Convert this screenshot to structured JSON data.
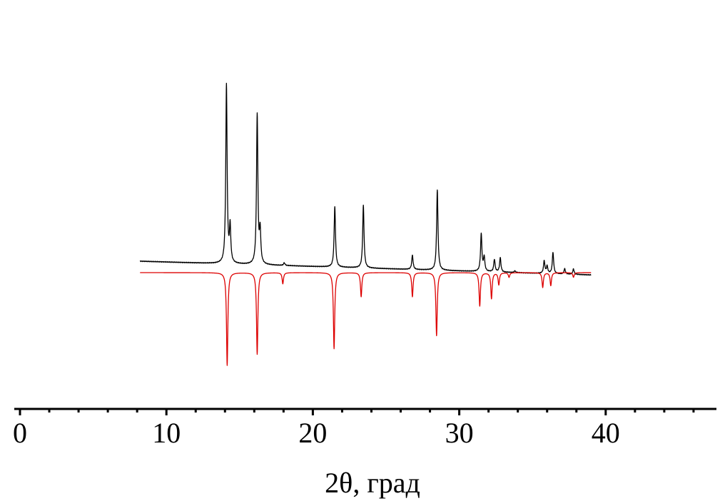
{
  "chart_data": {
    "type": "line",
    "xlabel": "2θ, град",
    "ylabel": "",
    "xlim": [
      0,
      47.8
    ],
    "x_ticks_major": [
      0,
      10,
      20,
      30,
      40
    ],
    "x_tick_labels": [
      "0",
      "10",
      "20",
      "30",
      "40"
    ],
    "x_minor_step": 2,
    "grid": false,
    "legend": "none",
    "series": [
      {
        "color": "#000000",
        "role": "experimental",
        "x_range": [
          8.2,
          39.0
        ],
        "baseline": 5.0,
        "baseline_slope": -0.25,
        "peaks": [
          {
            "x": 14.1,
            "y": 100
          },
          {
            "x": 14.35,
            "y": 20
          },
          {
            "x": 16.2,
            "y": 84
          },
          {
            "x": 16.4,
            "y": 18
          },
          {
            "x": 18.05,
            "y": 1.5
          },
          {
            "x": 21.5,
            "y": 34
          },
          {
            "x": 23.45,
            "y": 35
          },
          {
            "x": 26.8,
            "y": 8
          },
          {
            "x": 28.5,
            "y": 45
          },
          {
            "x": 31.5,
            "y": 21
          },
          {
            "x": 31.7,
            "y": 8
          },
          {
            "x": 32.4,
            "y": 7
          },
          {
            "x": 32.8,
            "y": 8
          },
          {
            "x": 33.8,
            "y": 1
          },
          {
            "x": 35.8,
            "y": 7
          },
          {
            "x": 36.0,
            "y": 4
          },
          {
            "x": 36.4,
            "y": 12
          },
          {
            "x": 37.2,
            "y": 3
          },
          {
            "x": 37.8,
            "y": 3
          }
        ]
      },
      {
        "color": "#dd0000",
        "role": "calculated",
        "x_range": [
          8.2,
          39.0
        ],
        "baseline": 0,
        "baseline_slope": 0,
        "inverted": true,
        "peaks": [
          {
            "x": 14.15,
            "y": 100
          },
          {
            "x": 16.2,
            "y": 88
          },
          {
            "x": 17.95,
            "y": 12
          },
          {
            "x": 21.45,
            "y": 82
          },
          {
            "x": 23.3,
            "y": 26
          },
          {
            "x": 26.8,
            "y": 26
          },
          {
            "x": 28.45,
            "y": 68
          },
          {
            "x": 31.4,
            "y": 36
          },
          {
            "x": 32.2,
            "y": 28
          },
          {
            "x": 32.7,
            "y": 13
          },
          {
            "x": 33.4,
            "y": 5
          },
          {
            "x": 35.7,
            "y": 16
          },
          {
            "x": 36.25,
            "y": 14
          },
          {
            "x": 37.8,
            "y": 5
          }
        ]
      }
    ]
  }
}
